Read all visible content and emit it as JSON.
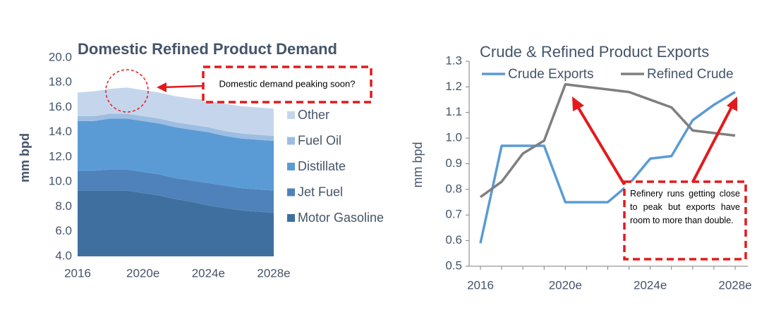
{
  "chart_data": [
    {
      "type": "area",
      "title": "Domestic Refined Product Demand",
      "y_label": "mm bpd",
      "categories": [
        "2016",
        null,
        null,
        null,
        "2020e",
        null,
        null,
        null,
        "2024e",
        null,
        null,
        null,
        "2028e"
      ],
      "series": [
        {
          "name": "Motor Gasoline",
          "color": "#3f6f9f",
          "values": [
            9.3,
            9.3,
            9.3,
            9.3,
            9.1,
            8.9,
            8.6,
            8.4,
            8.1,
            7.9,
            7.7,
            7.6,
            7.5
          ]
        },
        {
          "name": "Jet Fuel",
          "color": "#4f82ba",
          "values": [
            1.6,
            1.6,
            1.7,
            1.7,
            1.7,
            1.7,
            1.7,
            1.7,
            1.8,
            1.8,
            1.8,
            1.8,
            1.8
          ]
        },
        {
          "name": "Distillate",
          "color": "#5b9bd5",
          "values": [
            4.0,
            4.0,
            4.1,
            4.1,
            4.1,
            4.1,
            4.1,
            4.1,
            4.1,
            4.0,
            4.0,
            4.0,
            4.0
          ]
        },
        {
          "name": "Fuel Oil",
          "color": "#9dbde3",
          "values": [
            0.4,
            0.4,
            0.4,
            0.4,
            0.4,
            0.4,
            0.4,
            0.4,
            0.4,
            0.4,
            0.4,
            0.4,
            0.4
          ]
        },
        {
          "name": "Other",
          "color": "#c5d6ec",
          "values": [
            1.9,
            2.0,
            2.0,
            2.1,
            2.1,
            2.1,
            2.1,
            2.1,
            2.2,
            2.2,
            2.2,
            2.2,
            2.2
          ]
        }
      ],
      "ylim": [
        4,
        20
      ],
      "yticks": [
        {
          "value": 4,
          "label": "4.0"
        },
        {
          "value": 6,
          "label": "6.0"
        },
        {
          "value": 8,
          "label": "8.0"
        },
        {
          "value": 10,
          "label": "10.0"
        },
        {
          "value": 12,
          "label": "12.0"
        },
        {
          "value": 14,
          "label": "14.0"
        },
        {
          "value": 16,
          "label": "16.0"
        },
        {
          "value": 18,
          "label": "18.0"
        },
        {
          "value": 20,
          "label": "20.0"
        }
      ],
      "annotation": "Domestic demand peaking soon?"
    },
    {
      "type": "line",
      "title": "Crude & Refined Product Exports",
      "y_label": "mm bpd",
      "categories": [
        "2016",
        null,
        null,
        null,
        "2020e",
        null,
        null,
        null,
        "2024e",
        null,
        null,
        null,
        "2028e"
      ],
      "series": [
        {
          "name": "Crude Exports",
          "color": "#5b9bd5",
          "values": [
            0.59,
            0.97,
            0.97,
            0.97,
            0.75,
            0.75,
            0.75,
            0.82,
            0.92,
            0.93,
            1.07,
            1.13,
            1.18
          ]
        },
        {
          "name": "Refined Crude",
          "color": "#7f7f7f",
          "values": [
            0.77,
            0.83,
            0.94,
            0.99,
            1.21,
            1.2,
            1.19,
            1.18,
            1.15,
            1.12,
            1.03,
            1.02,
            1.01
          ]
        }
      ],
      "ylim": [
        0.5,
        1.3
      ],
      "yticks": [
        0.5,
        0.6,
        0.7,
        0.8,
        0.9,
        {
          "value": 1.0,
          "label": "1.0"
        },
        1.1,
        1.2,
        1.3
      ],
      "annotation": "Refinery runs getting close to peak but exports have room to more than double."
    }
  ]
}
